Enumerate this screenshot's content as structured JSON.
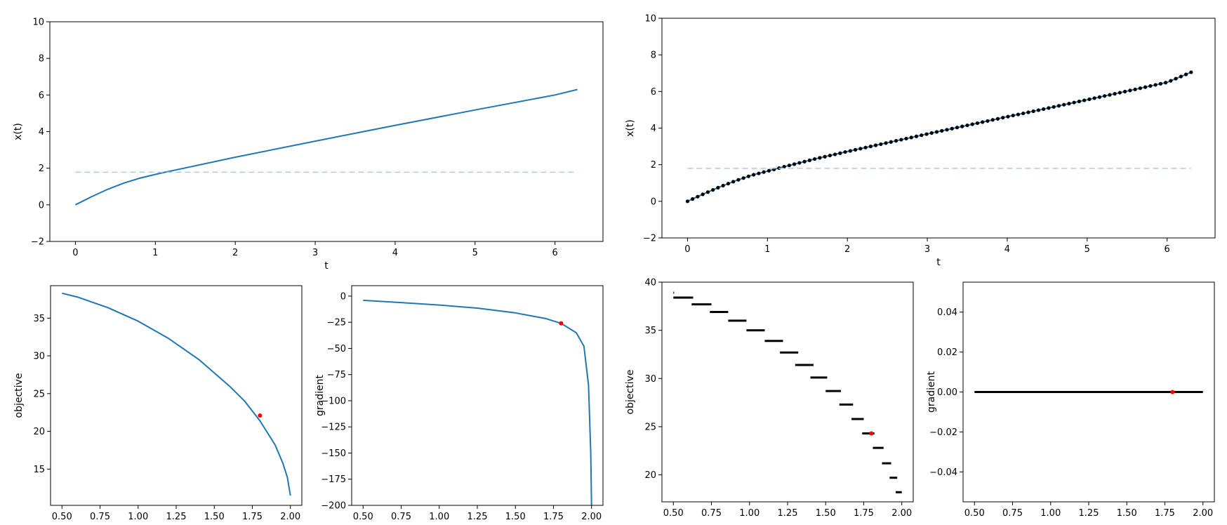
{
  "chart_data": [
    {
      "id": "top-left",
      "type": "line",
      "xlabel": "t",
      "ylabel": "x(t)",
      "xlim": [
        -0.32,
        6.6
      ],
      "ylim": [
        -2,
        10
      ],
      "xticks": [
        0,
        1,
        2,
        3,
        4,
        5,
        6
      ],
      "yticks": [
        -2,
        0,
        2,
        4,
        6,
        8,
        10
      ],
      "series": [
        {
          "style": "line",
          "color": "#1f77b4",
          "x": [
            0,
            0.2,
            0.4,
            0.6,
            0.8,
            1.0,
            1.1,
            2.0,
            3.0,
            4.0,
            5.0,
            6.0,
            6.28
          ],
          "y": [
            0,
            0.44,
            0.84,
            1.18,
            1.45,
            1.66,
            1.76,
            2.6,
            3.48,
            4.34,
            5.18,
            6.0,
            6.3
          ]
        },
        {
          "style": "dashed",
          "color": "#aecbe4",
          "x": [
            0,
            6.28
          ],
          "y": [
            1.78,
            1.78
          ]
        }
      ]
    },
    {
      "id": "top-right",
      "type": "line",
      "xlabel": "t",
      "ylabel": "x(t)",
      "xlim": [
        -0.32,
        6.6
      ],
      "ylim": [
        -2,
        10
      ],
      "xticks": [
        0,
        1,
        2,
        3,
        4,
        5,
        6
      ],
      "yticks": [
        -2,
        0,
        2,
        4,
        6,
        8,
        10
      ],
      "series": [
        {
          "style": "line+markers",
          "color": "#1f77b4",
          "marker_color": "#000000",
          "x": [
            0,
            0.2,
            0.4,
            0.6,
            0.8,
            1.0,
            1.2,
            1.6,
            2.0,
            2.5,
            3.0,
            3.5,
            4.0,
            4.5,
            5.0,
            5.5,
            6.0,
            6.3
          ],
          "y": [
            0,
            0.4,
            0.78,
            1.12,
            1.42,
            1.65,
            1.88,
            2.32,
            2.72,
            3.2,
            3.68,
            4.15,
            4.62,
            5.08,
            5.55,
            6.02,
            6.5,
            7.05
          ]
        },
        {
          "style": "dashed",
          "color": "#aecbe4",
          "x": [
            0,
            6.3
          ],
          "y": [
            1.8,
            1.8
          ]
        }
      ]
    },
    {
      "id": "bottom-1",
      "type": "line",
      "xlabel": "",
      "ylabel": "objective",
      "xlim": [
        0.425,
        2.075
      ],
      "ylim": [
        10.2,
        39.3
      ],
      "xticks": [
        0.5,
        0.75,
        1.0,
        1.25,
        1.5,
        1.75,
        2.0
      ],
      "xticklabels": [
        "0.50",
        "0.75",
        "1.00",
        "1.25",
        "1.50",
        "1.75",
        "2.00"
      ],
      "yticks": [
        15,
        20,
        25,
        30,
        35
      ],
      "series": [
        {
          "style": "line",
          "color": "#1f77b4",
          "x": [
            0.5,
            0.6,
            0.8,
            1.0,
            1.2,
            1.4,
            1.6,
            1.7,
            1.8,
            1.9,
            1.95,
            1.98,
            2.0
          ],
          "y": [
            38.3,
            37.8,
            36.4,
            34.6,
            32.3,
            29.5,
            26.0,
            24.0,
            21.4,
            18.2,
            15.8,
            13.9,
            11.5
          ]
        }
      ],
      "marker": {
        "x": 1.8,
        "y": 22.1,
        "color": "#ff0000"
      }
    },
    {
      "id": "bottom-2",
      "type": "line",
      "xlabel": "",
      "ylabel": "gradient",
      "xlim": [
        0.425,
        2.075
      ],
      "ylim": [
        -200,
        10
      ],
      "xticks": [
        0.5,
        0.75,
        1.0,
        1.25,
        1.5,
        1.75,
        2.0
      ],
      "xticklabels": [
        "0.50",
        "0.75",
        "1.00",
        "1.25",
        "1.50",
        "1.75",
        "2.00"
      ],
      "yticks": [
        0,
        -25,
        -50,
        -75,
        -100,
        -125,
        -150,
        -175,
        -200
      ],
      "series": [
        {
          "style": "line",
          "color": "#1f77b4",
          "x": [
            0.5,
            0.75,
            1.0,
            1.25,
            1.5,
            1.7,
            1.8,
            1.9,
            1.95,
            1.98,
            1.995,
            2.0
          ],
          "y": [
            -4.0,
            -6.2,
            -8.5,
            -11.5,
            -16.0,
            -21.5,
            -26.0,
            -35.0,
            -48.0,
            -85.0,
            -150.0,
            -200.0
          ]
        }
      ],
      "marker": {
        "x": 1.8,
        "y": -26.0,
        "color": "#ff0000"
      }
    },
    {
      "id": "bottom-3",
      "type": "scatter",
      "xlabel": "",
      "ylabel": "objective",
      "xlim": [
        0.425,
        2.075
      ],
      "ylim": [
        17.2,
        40
      ],
      "xticks": [
        0.5,
        0.75,
        1.0,
        1.25,
        1.5,
        1.75,
        2.0
      ],
      "xticklabels": [
        "0.50",
        "0.75",
        "1.00",
        "1.25",
        "1.50",
        "1.75",
        "2.00"
      ],
      "yticks": [
        20,
        25,
        30,
        35,
        40
      ],
      "steps": [
        {
          "x0": 0.5,
          "x1": 0.505,
          "y": 38.9
        },
        {
          "x0": 0.5,
          "x1": 0.63,
          "y": 38.4
        },
        {
          "x0": 0.62,
          "x1": 0.75,
          "y": 37.7
        },
        {
          "x0": 0.74,
          "x1": 0.86,
          "y": 36.9
        },
        {
          "x0": 0.86,
          "x1": 0.98,
          "y": 36.0
        },
        {
          "x0": 0.98,
          "x1": 1.1,
          "y": 35.0
        },
        {
          "x0": 1.1,
          "x1": 1.22,
          "y": 33.9
        },
        {
          "x0": 1.2,
          "x1": 1.32,
          "y": 32.7
        },
        {
          "x0": 1.3,
          "x1": 1.42,
          "y": 31.4
        },
        {
          "x0": 1.4,
          "x1": 1.51,
          "y": 30.1
        },
        {
          "x0": 1.5,
          "x1": 1.6,
          "y": 28.7
        },
        {
          "x0": 1.59,
          "x1": 1.68,
          "y": 27.3
        },
        {
          "x0": 1.67,
          "x1": 1.75,
          "y": 25.8
        },
        {
          "x0": 1.74,
          "x1": 1.82,
          "y": 24.3
        },
        {
          "x0": 1.81,
          "x1": 1.88,
          "y": 22.8
        },
        {
          "x0": 1.87,
          "x1": 1.93,
          "y": 21.2
        },
        {
          "x0": 1.92,
          "x1": 1.97,
          "y": 19.7
        },
        {
          "x0": 1.96,
          "x1": 2.0,
          "y": 18.2
        }
      ],
      "marker": {
        "x": 1.8,
        "y": 24.3,
        "color": "#ff0000"
      }
    },
    {
      "id": "bottom-4",
      "type": "line",
      "xlabel": "",
      "ylabel": "gradient",
      "xlim": [
        0.425,
        2.075
      ],
      "ylim": [
        -0.055,
        0.055
      ],
      "xticks": [
        0.5,
        0.75,
        1.0,
        1.25,
        1.5,
        1.75,
        2.0
      ],
      "xticklabels": [
        "0.50",
        "0.75",
        "1.00",
        "1.25",
        "1.50",
        "1.75",
        "2.00"
      ],
      "yticks": [
        0.04,
        0.02,
        0.0,
        -0.02,
        -0.04
      ],
      "yticklabels": [
        "0.04",
        "0.02",
        "0.00",
        "−0.02",
        "−0.04"
      ],
      "series": [
        {
          "style": "line",
          "color": "#000000",
          "width": 3,
          "x": [
            0.5,
            2.0
          ],
          "y": [
            0,
            0
          ]
        }
      ],
      "marker": {
        "x": 1.8,
        "y": 0,
        "color": "#ff0000"
      }
    }
  ]
}
